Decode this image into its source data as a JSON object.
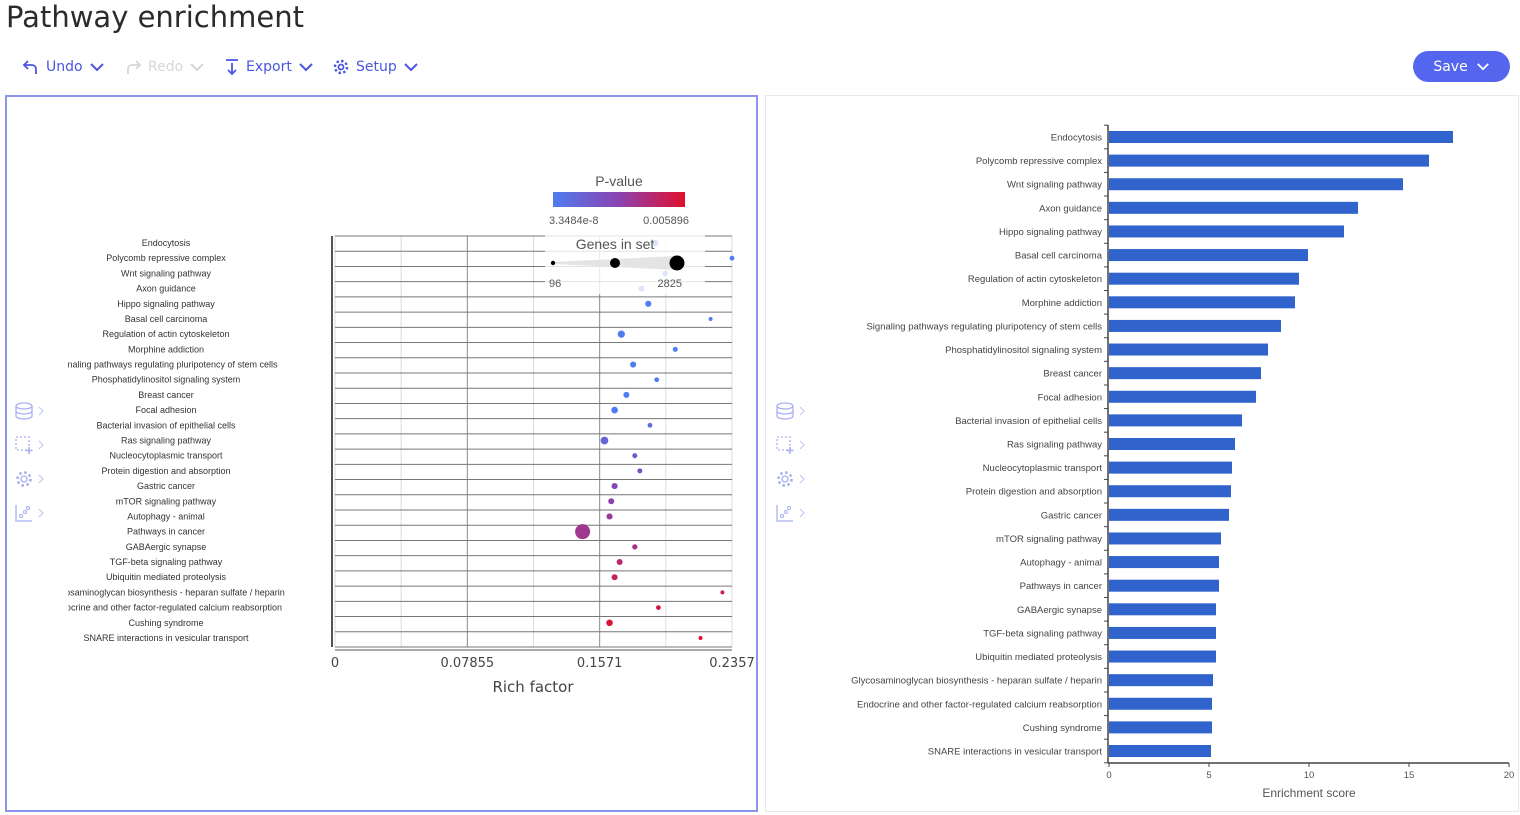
{
  "page_title": "Pathway enrichment",
  "toolbar": {
    "undo_label": "Undo",
    "redo_label": "Redo",
    "export_label": "Export",
    "setup_label": "Setup",
    "save_label": "Save"
  },
  "colors": {
    "accent": "#5566ee",
    "bar": "#3163cc",
    "pvalue_low": "#4f7cf0",
    "pvalue_high": "#e0102e"
  },
  "side_icons": [
    "database-icon",
    "select-add-icon",
    "gear-icon",
    "scatter-chart-icon"
  ],
  "chart_data": [
    {
      "type": "scatter",
      "xlabel": "Rich factor",
      "xlim": [
        0,
        0.2357
      ],
      "xticks": [
        "0",
        "0.07855",
        "0.1571",
        "0.2357"
      ],
      "grid": true,
      "legend": {
        "color_title": "P-value",
        "color_min_label": "3.3484e-8",
        "color_max_label": "0.005896",
        "size_title": "Genes in set",
        "size_min_label": "96",
        "size_max_label": "2825",
        "placement": "top-right"
      },
      "categories": [
        "Endocytosis",
        "Polycomb repressive complex",
        "Wnt signaling pathway",
        "Axon guidance",
        "Hippo signaling pathway",
        "Basal cell carcinoma",
        "Regulation of actin cytoskeleton",
        "Morphine addiction",
        "Signaling pathways regulating pluripotency of stem cells",
        "Phosphatidylinositol signaling system",
        "Breast cancer",
        "Focal adhesion",
        "Bacterial invasion of epithelial cells",
        "Ras signaling pathway",
        "Nucleocytoplasmic transport",
        "Protein digestion and absorption",
        "Gastric cancer",
        "mTOR signaling pathway",
        "Autophagy - animal",
        "Pathways in cancer",
        "GABAergic synapse",
        "TGF-beta signaling pathway",
        "Ubiquitin mediated proteolysis",
        "Glycosaminoglycan biosynthesis - heparan sulfate / heparin",
        "Endocrine and other factor-regulated calcium reabsorption",
        "Cushing syndrome",
        "SNARE interactions in vesicular transport"
      ],
      "rich_factor": [
        0.19,
        0.2357,
        0.196,
        0.182,
        0.186,
        0.223,
        0.17,
        0.202,
        0.177,
        0.191,
        0.173,
        0.166,
        0.187,
        0.16,
        0.178,
        0.181,
        0.166,
        0.164,
        0.163,
        0.147,
        0.178,
        0.169,
        0.166,
        0.23,
        0.192,
        0.163,
        0.217
      ],
      "p_value": [
        3.3484e-08,
        1e-07,
        2e-07,
        3e-07,
        5e-07,
        8e-07,
        1e-06,
        1.5e-06,
        2e-06,
        3e-06,
        4e-06,
        5e-06,
        0.0008,
        0.0013,
        0.0018,
        0.0022,
        0.0026,
        0.003,
        0.0034,
        0.0037,
        0.004,
        0.0044,
        0.0048,
        0.0051,
        0.0054,
        0.0057,
        0.005896
      ],
      "genes_in_set": [
        250,
        110,
        160,
        180,
        200,
        96,
        330,
        120,
        200,
        110,
        190,
        250,
        110,
        400,
        120,
        120,
        200,
        190,
        200,
        2825,
        130,
        190,
        190,
        96,
        110,
        250,
        96
      ]
    },
    {
      "type": "bar",
      "orientation": "horizontal",
      "xlabel": "Enrichment score",
      "xlim": [
        0,
        20
      ],
      "xticks": [
        "0",
        "5",
        "10",
        "15",
        "20"
      ],
      "categories": [
        "Endocytosis",
        "Polycomb repressive complex",
        "Wnt signaling pathway",
        "Axon guidance",
        "Hippo signaling pathway",
        "Basal cell carcinoma",
        "Regulation of actin cytoskeleton",
        "Morphine addiction",
        "Signaling pathways regulating pluripotency of stem cells",
        "Phosphatidylinositol signaling system",
        "Breast cancer",
        "Focal adhesion",
        "Bacterial invasion of epithelial cells",
        "Ras signaling pathway",
        "Nucleocytoplasmic transport",
        "Protein digestion and absorption",
        "Gastric cancer",
        "mTOR signaling pathway",
        "Autophagy - animal",
        "Pathways in cancer",
        "GABAergic synapse",
        "TGF-beta signaling pathway",
        "Ubiquitin mediated proteolysis",
        "Glycosaminoglycan biosynthesis - heparan sulfate / heparin",
        "Endocrine and other factor-regulated calcium reabsorption",
        "Cushing syndrome",
        "SNARE interactions in vesicular transport"
      ],
      "values": [
        17.2,
        16.0,
        14.7,
        12.45,
        11.75,
        9.95,
        9.5,
        9.3,
        8.6,
        7.95,
        7.6,
        7.35,
        6.65,
        6.3,
        6.15,
        6.1,
        6.0,
        5.6,
        5.5,
        5.5,
        5.35,
        5.35,
        5.35,
        5.2,
        5.15,
        5.15,
        5.1
      ]
    }
  ]
}
